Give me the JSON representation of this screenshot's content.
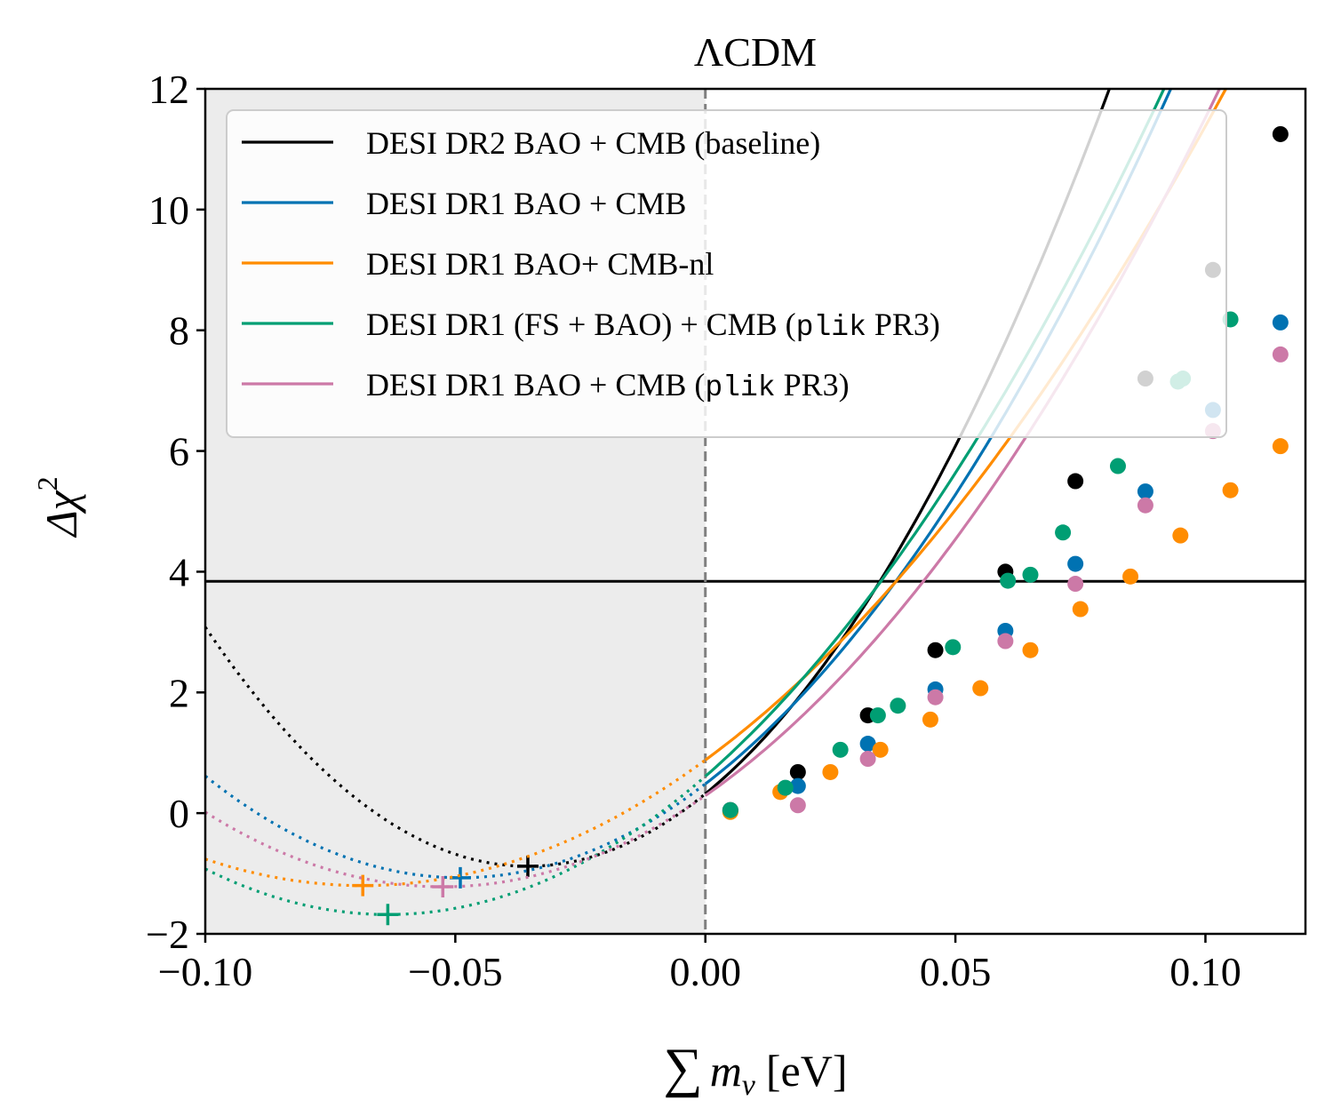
{
  "chart_data": {
    "type": "line",
    "title": "ΛCDM",
    "xlabel": "∑ m_ν [eV]",
    "xlabel_sum": "∑",
    "xlabel_var": "m",
    "xlabel_sub": "ν",
    "xlabel_unit": "[eV]",
    "ylabel": "Δχ²",
    "ylabel_delta": "Δχ",
    "ylabel_sup": "2",
    "xlim": [
      -0.1,
      0.12
    ],
    "ylim": [
      -2,
      12
    ],
    "xticks": [
      -0.1,
      -0.05,
      0.0,
      0.05,
      0.1
    ],
    "xtick_labels": [
      "−0.10",
      "−0.05",
      "0.00",
      "0.05",
      "0.10"
    ],
    "yticks": [
      -2,
      0,
      2,
      4,
      6,
      8,
      10,
      12
    ],
    "ytick_labels": [
      "−2",
      "0",
      "2",
      "4",
      "6",
      "8",
      "10",
      "12"
    ],
    "shaded_region": [
      -0.1,
      0.0
    ],
    "vline": 0.0,
    "hline": 3.84,
    "legend_position": "upper-left",
    "series": [
      {
        "name": "DESI DR2 BAO + CMB (baseline)",
        "legend_parts": [
          "DESI DR2 BAO + CMB (baseline)"
        ],
        "color": "#000000",
        "min_x": -0.0355,
        "min_y": -0.88,
        "curv": 952.4,
        "points_x": [
          0.005,
          0.0185,
          0.0325,
          0.046,
          0.06,
          0.074,
          0.088,
          0.1015,
          0.115
        ],
        "points_y": [
          0.05,
          0.68,
          1.62,
          2.7,
          4.0,
          5.5,
          7.2,
          9.0,
          11.25
        ]
      },
      {
        "name": "DESI DR1 BAO + CMB",
        "legend_parts": [
          "DESI DR1 BAO + CMB"
        ],
        "color": "#0072B2",
        "min_x": -0.049,
        "min_y": -1.07,
        "curv": 647.6,
        "points_x": [
          0.005,
          0.0185,
          0.0325,
          0.046,
          0.06,
          0.074,
          0.088,
          0.1015,
          0.115
        ],
        "points_y": [
          0.03,
          0.45,
          1.15,
          2.05,
          3.02,
          4.13,
          5.33,
          6.68,
          8.13
        ]
      },
      {
        "name": "DESI DR1 BAO+ CMB-nl",
        "legend_parts": [
          "DESI DR1 BAO+ CMB-nl"
        ],
        "color": "#FF8C00",
        "min_x": -0.0685,
        "min_y": -1.2,
        "curv": 443.2,
        "points_x": [
          0.005,
          0.015,
          0.025,
          0.035,
          0.045,
          0.055,
          0.065,
          0.075,
          0.085,
          0.095,
          0.105,
          0.115
        ],
        "points_y": [
          0.02,
          0.35,
          0.68,
          1.05,
          1.55,
          2.07,
          2.7,
          3.38,
          3.92,
          4.6,
          5.35,
          6.08
        ]
      },
      {
        "name": "DESI DR1 (FS + BAO) + CMB (plik PR3)",
        "legend_parts": [
          "DESI DR1 (FS + BAO) + CMB (",
          "plik",
          " PR3)"
        ],
        "color": "#009E73",
        "min_x": -0.0635,
        "min_y": -1.68,
        "curv": 567.9,
        "points_x": [
          0.005,
          0.016,
          0.027,
          0.0345,
          0.0385,
          0.0495,
          0.0605,
          0.065,
          0.0715,
          0.0825,
          0.0945,
          0.0955,
          0.105
        ],
        "points_y": [
          0.05,
          0.42,
          1.05,
          1.62,
          1.78,
          2.75,
          3.85,
          3.95,
          4.65,
          5.75,
          7.15,
          7.2,
          8.18
        ]
      },
      {
        "name": "DESI DR1 BAO + CMB (plik PR3)",
        "legend_parts": [
          "DESI DR1 BAO + CMB (",
          "plik",
          " PR3)"
        ],
        "color": "#CC79A7",
        "min_x": -0.0525,
        "min_y": -1.22,
        "curv": 548.0,
        "points_x": [
          0.0185,
          0.0325,
          0.046,
          0.06,
          0.074,
          0.088,
          0.1015,
          0.115
        ],
        "points_y": [
          0.13,
          0.9,
          1.92,
          2.85,
          3.8,
          5.1,
          6.33,
          7.6
        ]
      }
    ]
  }
}
